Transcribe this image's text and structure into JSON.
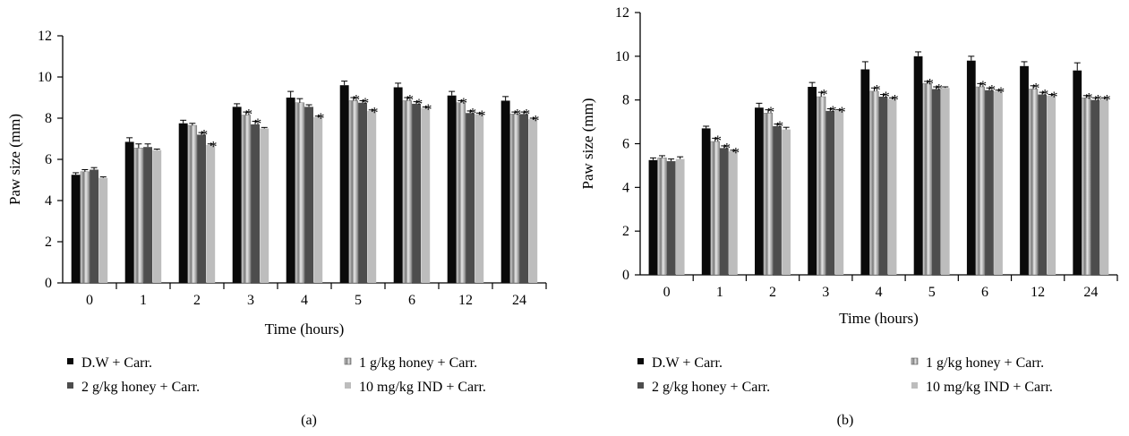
{
  "colors": {
    "dw": "#0a0a0a",
    "honey1": "#9a9a9a",
    "honey2": "#4d4d4d",
    "ind": "#bdbdbd"
  },
  "legend": [
    {
      "label": "D.W + Carr.",
      "key": "dw"
    },
    {
      "label": "1 g/kg honey + Carr.",
      "key": "honey1"
    },
    {
      "label": "2 g/kg honey + Carr.",
      "key": "honey2"
    },
    {
      "label": "10 mg/kg IND + Carr.",
      "key": "ind"
    }
  ],
  "chart_data": [
    {
      "type": "bar",
      "panel_label": "(a)",
      "xlabel": "Time (hours)",
      "ylabel": "Paw size (mm)",
      "ylim": [
        0,
        12
      ],
      "yticks": [
        0,
        2,
        4,
        6,
        8,
        10,
        12
      ],
      "categories": [
        "0",
        "1",
        "2",
        "3",
        "4",
        "5",
        "6",
        "12",
        "24"
      ],
      "series": [
        {
          "name": "D.W + Carr.",
          "key": "dw",
          "values": [
            5.25,
            6.85,
            7.75,
            8.55,
            9.0,
            9.6,
            9.5,
            9.1,
            8.85
          ],
          "errors": [
            0.1,
            0.2,
            0.15,
            0.15,
            0.3,
            0.2,
            0.2,
            0.2,
            0.2
          ],
          "stars": [
            false,
            false,
            false,
            false,
            false,
            false,
            false,
            false,
            false
          ]
        },
        {
          "name": "1 g/kg honey + Carr.",
          "key": "honey1",
          "values": [
            5.4,
            6.55,
            7.65,
            8.15,
            8.75,
            8.85,
            8.85,
            8.75,
            8.2
          ],
          "errors": [
            0.1,
            0.2,
            0.1,
            0.15,
            0.2,
            0.15,
            0.15,
            0.1,
            0.1
          ],
          "stars": [
            false,
            false,
            false,
            true,
            false,
            true,
            true,
            true,
            true
          ]
        },
        {
          "name": "2 g/kg honey + Carr.",
          "key": "honey2",
          "values": [
            5.5,
            6.6,
            7.2,
            7.7,
            8.55,
            8.75,
            8.7,
            8.25,
            8.2
          ],
          "errors": [
            0.1,
            0.15,
            0.1,
            0.15,
            0.1,
            0.1,
            0.1,
            0.1,
            0.1
          ],
          "stars": [
            false,
            false,
            true,
            true,
            false,
            true,
            true,
            true,
            true
          ]
        },
        {
          "name": "10 mg/kg IND + Carr.",
          "key": "ind",
          "values": [
            5.1,
            6.45,
            6.7,
            7.5,
            8.05,
            8.35,
            8.5,
            8.2,
            7.95
          ],
          "errors": [
            0.05,
            0.05,
            0.05,
            0.05,
            0.05,
            0.05,
            0.05,
            0.05,
            0.05
          ],
          "stars": [
            false,
            false,
            true,
            false,
            true,
            true,
            true,
            true,
            true
          ]
        }
      ]
    },
    {
      "type": "bar",
      "panel_label": "(b)",
      "xlabel": "Time (hours)",
      "ylabel": "Paw size (mm)",
      "ylim": [
        0,
        12
      ],
      "yticks": [
        0,
        2,
        4,
        6,
        8,
        10,
        12
      ],
      "categories": [
        "0",
        "1",
        "2",
        "3",
        "4",
        "5",
        "6",
        "12",
        "24"
      ],
      "series": [
        {
          "name": "D.W + Carr.",
          "key": "dw",
          "values": [
            5.25,
            6.7,
            7.65,
            8.6,
            9.4,
            10.0,
            9.8,
            9.55,
            9.35
          ],
          "errors": [
            0.1,
            0.1,
            0.2,
            0.2,
            0.35,
            0.2,
            0.2,
            0.2,
            0.35
          ],
          "stars": [
            false,
            false,
            false,
            false,
            false,
            false,
            false,
            false,
            false
          ]
        },
        {
          "name": "1 g/kg honey + Carr.",
          "key": "honey1",
          "values": [
            5.35,
            6.1,
            7.4,
            8.15,
            8.4,
            8.75,
            8.6,
            8.5,
            8.1
          ],
          "errors": [
            0.1,
            0.15,
            0.15,
            0.2,
            0.15,
            0.1,
            0.15,
            0.15,
            0.1
          ],
          "stars": [
            false,
            true,
            true,
            true,
            true,
            true,
            true,
            true,
            true
          ]
        },
        {
          "name": "2 g/kg honey + Carr.",
          "key": "honey2",
          "values": [
            5.2,
            5.8,
            6.8,
            7.5,
            8.15,
            8.5,
            8.45,
            8.25,
            8.0
          ],
          "errors": [
            0.1,
            0.1,
            0.1,
            0.1,
            0.1,
            0.1,
            0.1,
            0.1,
            0.1
          ],
          "stars": [
            false,
            true,
            true,
            true,
            true,
            true,
            true,
            true,
            true
          ]
        },
        {
          "name": "10 mg/kg IND + Carr.",
          "key": "ind",
          "values": [
            5.3,
            5.65,
            6.65,
            7.5,
            8.05,
            8.55,
            8.4,
            8.2,
            8.05
          ],
          "errors": [
            0.1,
            0.05,
            0.1,
            0.05,
            0.05,
            0.05,
            0.05,
            0.05,
            0.05
          ],
          "stars": [
            false,
            true,
            false,
            true,
            true,
            false,
            true,
            true,
            true
          ]
        }
      ]
    }
  ]
}
